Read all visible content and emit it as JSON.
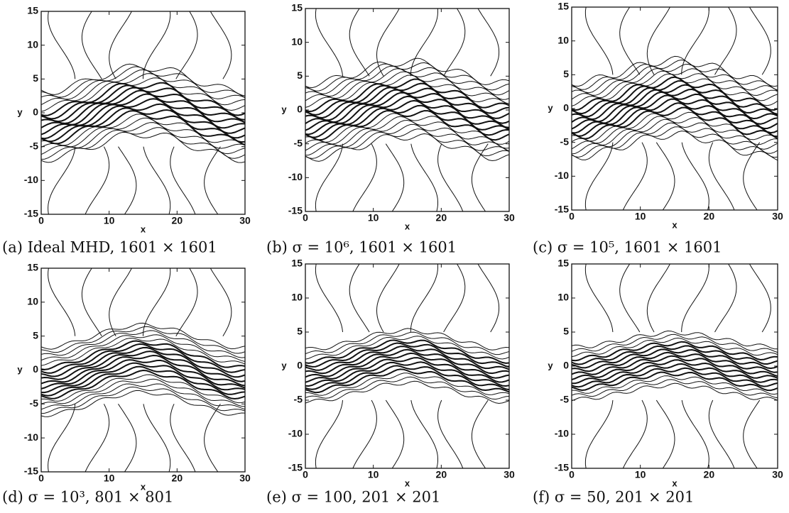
{
  "chart_data": [
    {
      "type": "contour",
      "caption": "(a) Ideal MHD, 1601 × 1601",
      "xlabel": "x",
      "ylabel": "y",
      "xlim": [
        0,
        30
      ],
      "ylim": [
        -15,
        15
      ],
      "xticks": [
        0,
        10,
        20,
        30
      ],
      "yticks": [
        -15,
        -10,
        -5,
        0,
        5,
        10,
        15
      ]
    },
    {
      "type": "contour",
      "caption": "(b) σ = 10⁶, 1601 × 1601",
      "xlabel": "x",
      "ylabel": "y",
      "xlim": [
        0,
        30
      ],
      "ylim": [
        -15,
        15
      ],
      "xticks": [
        0,
        10,
        20,
        30
      ],
      "yticks": [
        -15,
        -10,
        -5,
        0,
        5,
        10,
        15
      ]
    },
    {
      "type": "contour",
      "caption": "(c) σ = 10⁵, 1601 × 1601",
      "xlabel": "x",
      "ylabel": "y",
      "xlim": [
        0,
        30
      ],
      "ylim": [
        -15,
        15
      ],
      "xticks": [
        0,
        10,
        20,
        30
      ],
      "yticks": [
        -15,
        -10,
        -5,
        0,
        5,
        10,
        15
      ]
    },
    {
      "type": "contour",
      "caption": "(d) σ = 10³, 801 × 801",
      "xlabel": "x",
      "ylabel": "y",
      "xlim": [
        0,
        30
      ],
      "ylim": [
        -15,
        15
      ],
      "xticks": [
        0,
        10,
        20,
        30
      ],
      "yticks": [
        -15,
        -10,
        -5,
        0,
        5,
        10,
        15
      ]
    },
    {
      "type": "contour",
      "caption": "(e) σ = 100, 201 × 201",
      "xlabel": "x",
      "ylabel": "y",
      "xlim": [
        0,
        30
      ],
      "ylim": [
        -15,
        15
      ],
      "xticks": [
        0,
        10,
        20,
        30
      ],
      "yticks": [
        -15,
        -10,
        -5,
        0,
        5,
        10,
        15
      ]
    },
    {
      "type": "contour",
      "caption": "(f) σ = 50, 201 × 201",
      "xlabel": "x",
      "ylabel": "y",
      "xlim": [
        0,
        30
      ],
      "ylim": [
        -15,
        15
      ],
      "xticks": [
        0,
        10,
        20,
        30
      ],
      "yticks": [
        -15,
        -10,
        -5,
        0,
        5,
        10,
        15
      ]
    }
  ]
}
